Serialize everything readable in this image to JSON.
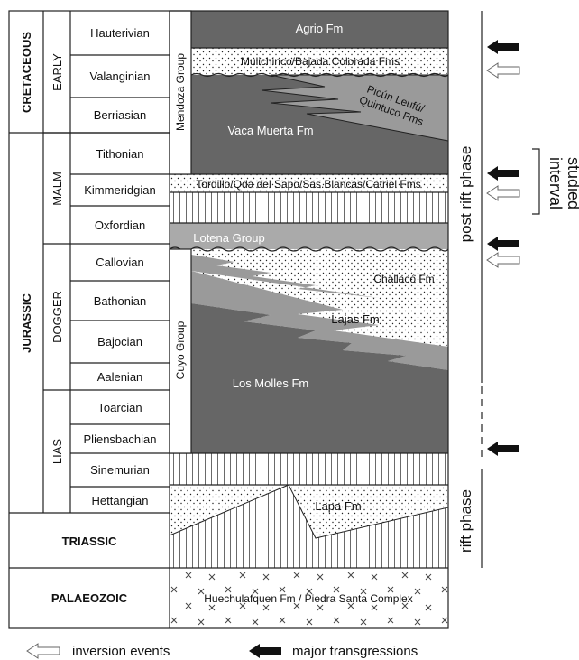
{
  "eras": {
    "cretaceous": "CRETACEOUS",
    "jurassic": "JURASSIC",
    "triassic": "TRIASSIC",
    "palaeozoic": "PALAEOZOIC"
  },
  "epochs": {
    "early": "EARLY",
    "malm": "MALM",
    "dogger": "DOGGER",
    "lias": "LIAS"
  },
  "stages": [
    "Hauterivian",
    "Valanginian",
    "Berriasian",
    "Tithonian",
    "Kimmeridgian",
    "Oxfordian",
    "Callovian",
    "Bathonian",
    "Bajocian",
    "Aalenian",
    "Toarcian",
    "Pliensbachian",
    "Sinemurian",
    "Hettangian"
  ],
  "groups": {
    "mendoza": "Mendoza Group",
    "cuyo": "Cuyo Group"
  },
  "units": {
    "agrio": "Agrio Fm",
    "mulichinco": "Mulichinco/Bajada Colorada Fms",
    "picun_1": "Picún Leufú/",
    "picun_2": "Quintuco Fms",
    "vaca_muerta": "Vaca Muerta Fm",
    "tordillo": "Tordillo/Qda del Sapo/Sas.Blancas/Catriel Fms",
    "lotena": "Lotena Group",
    "challaco": "Challacó Fm",
    "lajas": "Lajas Fm",
    "los_molles": "Los Molles Fm",
    "lapa": "Lapa Fm",
    "huechulafquen": "Huechulafquen Fm / Piedra Santa Complex"
  },
  "phases": {
    "post_rift": "post rift phase",
    "rift": "rift phase"
  },
  "studied": {
    "line1": "studied",
    "line2": "interval"
  },
  "legend": {
    "inversion": "inversion events",
    "transgression": "major transgressions"
  },
  "colors": {
    "dark_shale": "#666666",
    "mid_shale": "#9a9a9a",
    "light_unit": "#aaaaaa",
    "outline": "#222222"
  }
}
